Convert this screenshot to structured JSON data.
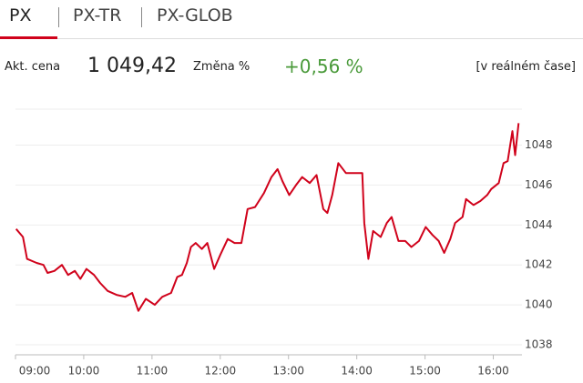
{
  "tabs": [
    "PX",
    "PX-TR",
    "PX-GLOB"
  ],
  "quote": {
    "price_label": "Akt. cena",
    "price": "1 049,42",
    "change_label": "Změna %",
    "change": "+0,56 %",
    "note": "[v reálném čase]"
  },
  "chart_data": {
    "type": "line",
    "color": "#d0021b",
    "grid": true,
    "x": [
      9.01,
      9.11,
      9.17,
      9.31,
      9.41,
      9.47,
      9.57,
      9.68,
      9.77,
      9.87,
      9.95,
      10.04,
      10.15,
      10.24,
      10.35,
      10.48,
      10.61,
      10.71,
      10.8,
      10.91,
      11.04,
      11.15,
      11.28,
      11.37,
      11.44,
      11.51,
      11.57,
      11.64,
      11.73,
      11.81,
      11.91,
      12.0,
      12.11,
      12.21,
      12.31,
      12.4,
      12.51,
      12.64,
      12.75,
      12.84,
      12.91,
      13.01,
      13.11,
      13.2,
      13.31,
      13.41,
      13.51,
      13.57,
      13.64,
      13.73,
      13.84,
      13.95,
      14.08,
      14.11,
      14.17,
      14.24,
      14.35,
      14.44,
      14.51,
      14.61,
      14.71,
      14.8,
      14.91,
      15.01,
      15.11,
      15.2,
      15.28,
      15.37,
      15.44,
      15.55,
      15.6,
      15.71,
      15.81,
      15.91,
      15.97,
      16.08,
      16.15,
      16.21,
      16.28,
      16.32,
      16.37
    ],
    "series": [
      {
        "values": [
          1043.8,
          1043.4,
          1042.3,
          1042.1,
          1042.0,
          1041.6,
          1041.7,
          1042.0,
          1041.5,
          1041.7,
          1041.3,
          1041.8,
          1041.5,
          1041.1,
          1040.7,
          1040.5,
          1040.4,
          1040.6,
          1039.7,
          1040.3,
          1040.0,
          1040.4,
          1040.6,
          1041.4,
          1041.5,
          1042.1,
          1042.9,
          1043.1,
          1042.8,
          1043.1,
          1041.8,
          1042.5,
          1043.3,
          1043.1,
          1043.1,
          1044.8,
          1044.9,
          1045.6,
          1046.4,
          1046.8,
          1046.2,
          1045.5,
          1046.0,
          1046.4,
          1046.1,
          1046.5,
          1044.8,
          1044.6,
          1045.5,
          1047.1,
          1046.6,
          1046.6,
          1046.6,
          1044.1,
          1042.3,
          1043.7,
          1043.4,
          1044.1,
          1044.4,
          1043.2,
          1043.2,
          1042.9,
          1043.2,
          1043.9,
          1043.5,
          1043.2,
          1042.6,
          1043.3,
          1044.1,
          1044.4,
          1045.3,
          1045.0,
          1045.2,
          1045.5,
          1045.8,
          1046.1,
          1047.1,
          1047.2,
          1048.7,
          1047.5,
          1049.1
        ]
      }
    ],
    "xlim": [
      9,
      16.42
    ],
    "xticks": [
      {
        "value": 9,
        "label": "09:00"
      },
      {
        "value": 10,
        "label": "10:00"
      },
      {
        "value": 11,
        "label": "11:00"
      },
      {
        "value": 12,
        "label": "12:00"
      },
      {
        "value": 13,
        "label": "13:00"
      },
      {
        "value": 14,
        "label": "14:00"
      },
      {
        "value": 15,
        "label": "15:00"
      },
      {
        "value": 16,
        "label": "16:00"
      }
    ],
    "ylim": [
      1037.5,
      1049.8
    ],
    "yticks": [
      1038,
      1040,
      1042,
      1044,
      1046,
      1048
    ]
  }
}
